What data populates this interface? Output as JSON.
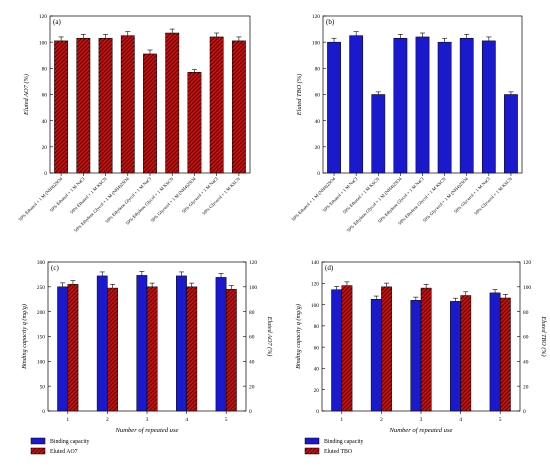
{
  "chart_data": [
    {
      "panel": "(a)",
      "type": "bar",
      "ylabel": "Eluted AO7 (%)",
      "ylim": [
        0,
        120
      ],
      "yticks": [
        0,
        20,
        40,
        60,
        80,
        100,
        120
      ],
      "bar_color": "#cc1111",
      "hatch": "diagonal",
      "categories": [
        "50% Ethanol + 1 M (NH4)2SO4",
        "50% Ethanol + 1 M NaCl",
        "50% Ethanol + 1 M KSCN",
        "50% Ethylene Glycol + 1 M (NH4)2SO4",
        "50% Ethylene Glycol + 1 M NaCl",
        "50% Ethylene Glycol + 1 M KSCN",
        "50% Glycerol + 1 M (NH4)2SO4",
        "50% Glycerol + 1 M NaCl",
        "50% Glycerol + 1 M KSCN"
      ],
      "values": [
        101,
        103,
        103,
        105,
        91,
        107,
        77,
        104,
        101
      ],
      "errors": [
        3,
        3,
        3,
        3,
        3,
        3,
        2,
        3,
        3
      ]
    },
    {
      "panel": "(b)",
      "type": "bar",
      "ylabel": "Eluted TBO (%)",
      "ylim": [
        0,
        120
      ],
      "yticks": [
        0,
        20,
        40,
        60,
        80,
        100,
        120
      ],
      "bar_color": "#1a1acc",
      "hatch": "none",
      "categories": [
        "50% Ethanol + 1 M (NH4)2SO4",
        "50% Ethanol + 1 M NaCl",
        "50% Ethanol + 1 M KSCN",
        "50% Ethylene Glycol + 1 M (NH4)2SO4",
        "50% Ethylene Glycol + 1 M NaCl",
        "50% Ethylene Glycol + 1 M KSCN",
        "50% Glycerol + 1 M (NH4)2SO4",
        "50% Glycerol + 1 M NaCl",
        "50% Glycerol + 1 M KSCN"
      ],
      "values": [
        100,
        105,
        60,
        103,
        104,
        100,
        103,
        101,
        60
      ],
      "errors": [
        3,
        3,
        2,
        3,
        3,
        3,
        3,
        3,
        2
      ]
    },
    {
      "panel": "(c)",
      "type": "bar",
      "xlabel": "Number of repeated use",
      "ylabel": "Binding capacity q (mg/g)",
      "y2label": "Eluted AO7 (%)",
      "categories": [
        "1",
        "2",
        "3",
        "4",
        "5"
      ],
      "ylim": [
        0,
        300
      ],
      "yticks": [
        0,
        50,
        100,
        150,
        200,
        250,
        300
      ],
      "y2lim": [
        0,
        120
      ],
      "y2ticks": [
        0,
        20,
        40,
        60,
        80,
        100,
        120
      ],
      "series": [
        {
          "name": "Binding capacity",
          "axis": "left",
          "color": "#1a1acc",
          "hatch": "none",
          "values": [
            250,
            272,
            273,
            272,
            269
          ],
          "errors": [
            8,
            8,
            8,
            8,
            8
          ]
        },
        {
          "name": "Eluted AO7",
          "axis": "right",
          "color": "#cc1111",
          "hatch": "diagonal",
          "values": [
            102,
            99,
            100,
            100,
            98
          ],
          "errors": [
            3,
            3,
            3,
            3,
            3
          ]
        }
      ],
      "legend_position": "bottom-left"
    },
    {
      "panel": "(d)",
      "type": "bar",
      "xlabel": "Number of repeated use",
      "ylabel": "Binding capacity q (mg/g)",
      "y2label": "Eluted TBO (%)",
      "categories": [
        "1",
        "2",
        "3",
        "4",
        "5"
      ],
      "ylim": [
        0,
        140
      ],
      "yticks": [
        0,
        20,
        40,
        60,
        80,
        100,
        120,
        140
      ],
      "y2lim": [
        0,
        120
      ],
      "y2ticks": [
        0,
        20,
        40,
        60,
        80,
        100,
        120
      ],
      "series": [
        {
          "name": "Binding capacity",
          "axis": "left",
          "color": "#1a1acc",
          "hatch": "none",
          "values": [
            114,
            105,
            104,
            103,
            111
          ],
          "errors": [
            3,
            3,
            3,
            3,
            3
          ]
        },
        {
          "name": "Eluted TBO",
          "axis": "right",
          "color": "#cc1111",
          "hatch": "diagonal",
          "values": [
            101,
            100,
            99,
            93,
            91
          ],
          "errors": [
            3,
            3,
            3,
            3,
            3
          ]
        }
      ],
      "legend_position": "bottom-left"
    }
  ]
}
